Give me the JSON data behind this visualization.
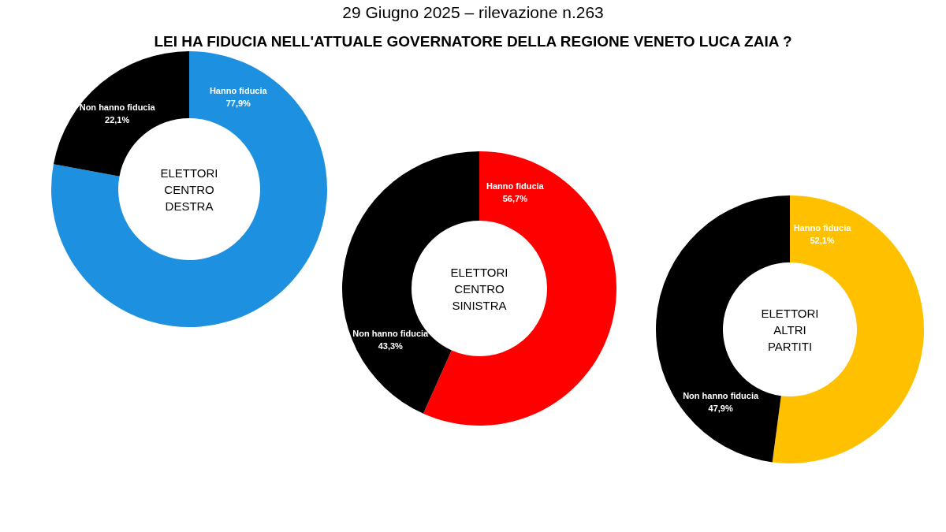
{
  "chart_data": [
    {
      "type": "donut",
      "title": "LEI HA FIDUCIA NELL'ATTUALE GOVERNATORE DELLA REGIONE VENETO LUCA ZAIA ?",
      "subtitle": "29 Giugno 2025 – rilevazione n.263",
      "annotations": [
        "ELETTORI CENTRO DESTRA"
      ],
      "categories": [
        "Hanno fiducia",
        "Non hanno fiducia"
      ],
      "values": [
        77.9,
        22.1
      ],
      "colors": [
        "#1e90e0",
        "#000000"
      ],
      "value_labels": [
        "77,9%",
        "22,1%"
      ]
    },
    {
      "type": "donut",
      "annotations": [
        "ELETTORI CENTRO SINISTRA"
      ],
      "categories": [
        "Hanno fiducia",
        "Non hanno fiducia"
      ],
      "values": [
        56.7,
        43.3
      ],
      "colors": [
        "#ff0000",
        "#000000"
      ],
      "value_labels": [
        "56,7%",
        "43,3%"
      ]
    },
    {
      "type": "donut",
      "annotations": [
        "ELETTORI ALTRI PARTITI"
      ],
      "categories": [
        "Hanno fiducia",
        "Non hanno fiducia"
      ],
      "values": [
        52.1,
        47.9
      ],
      "colors": [
        "#ffc000",
        "#000000"
      ],
      "value_labels": [
        "52,1%",
        "47,9%"
      ]
    }
  ]
}
